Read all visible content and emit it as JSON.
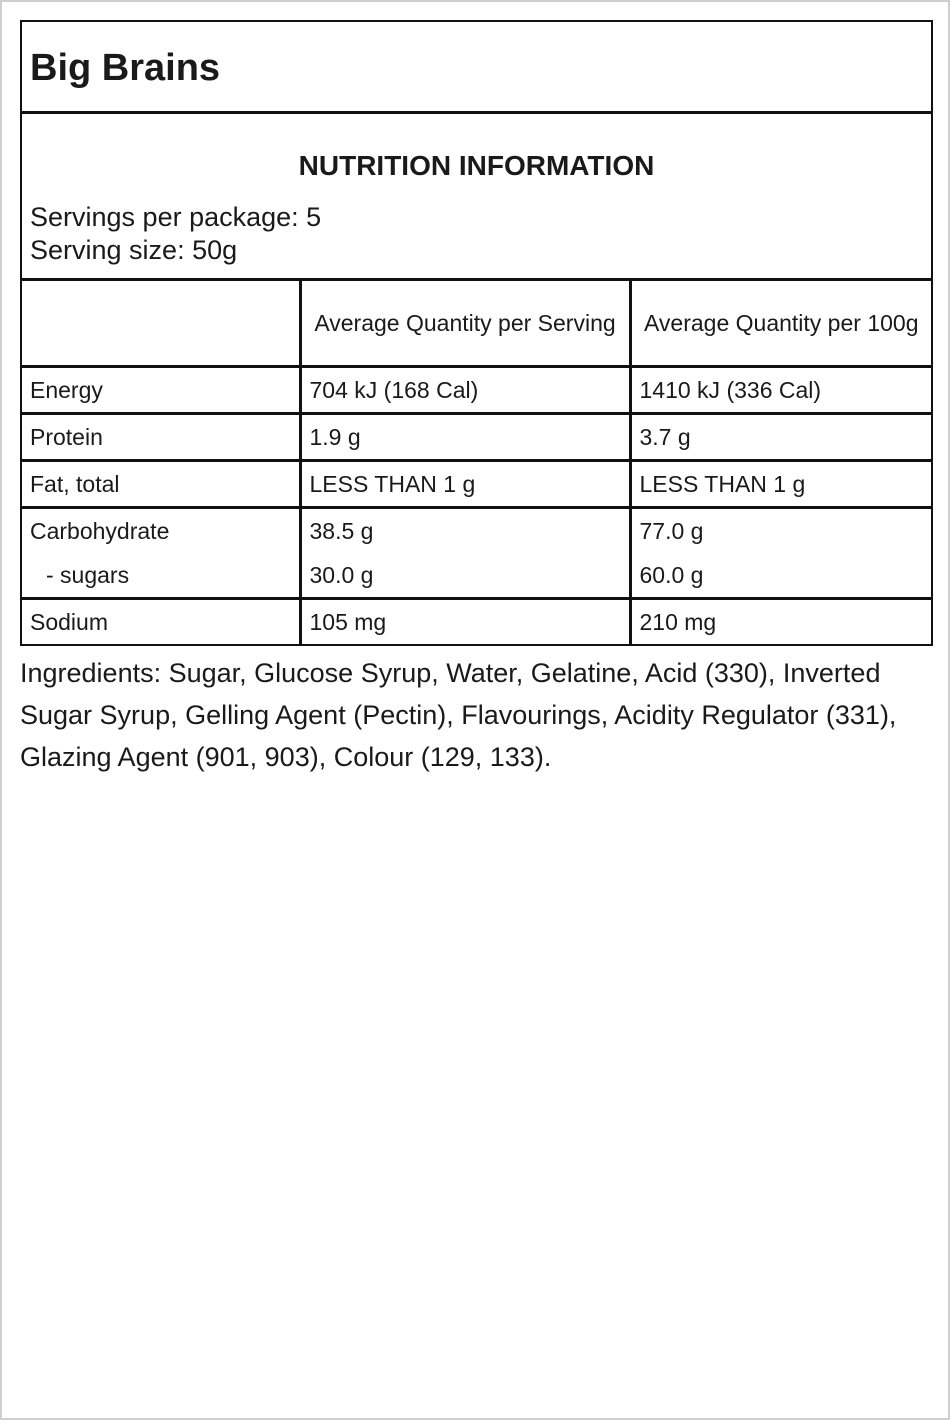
{
  "title": "Big Brains",
  "panel": {
    "heading": "NUTRITION INFORMATION",
    "servings_per_package": "Servings per package: 5",
    "serving_size": "Serving size: 50g"
  },
  "table": {
    "header": [
      "Average Quantity per Serving",
      "Average Quantity per 100g"
    ],
    "rows": [
      [
        [
          "Energy",
          "704 kJ (168 Cal)",
          "1410 kJ (336 Cal)"
        ]
      ],
      [
        [
          "Protein",
          "1.9 g",
          "3.7 g"
        ]
      ],
      [
        [
          "Fat, total",
          "LESS THAN 1 g",
          "LESS THAN 1 g"
        ]
      ],
      [
        [
          "Carbohydrate",
          "38.5 g",
          "77.0 g"
        ],
        [
          "- sugars",
          "30.0 g",
          "60.0 g"
        ]
      ],
      [
        [
          "Sodium",
          "105 mg",
          "210 mg"
        ]
      ]
    ]
  },
  "ingredients": "Ingredients: Sugar, Glucose Syrup, Water, Gelatine, Acid (330), Inverted Sugar Syrup, Gelling Agent (Pectin), Flavourings, Acidity Regulator (331), Glazing Agent (901, 903), Colour (129, 133)."
}
